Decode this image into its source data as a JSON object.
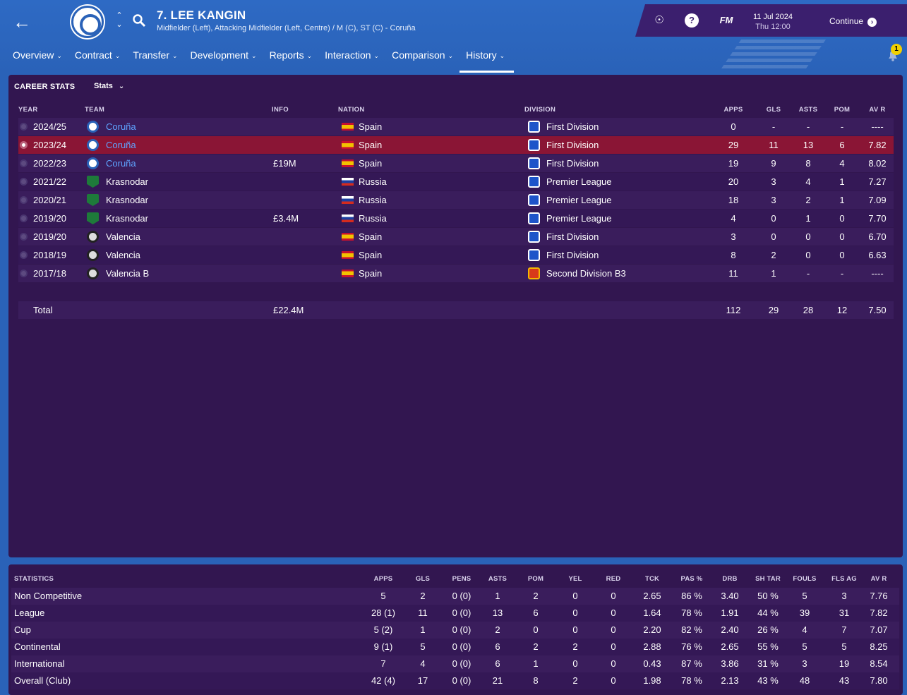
{
  "header": {
    "player_name": "7. LEE KANGIN",
    "positions": "Midfielder (Left), Attacking Midfielder (Left, Centre) / M (C), ST (C) - Coruña",
    "date": "11 Jul 2024",
    "time": "Thu 12:00",
    "brand": "FM",
    "help_glyph": "?",
    "continue_label": "Continue",
    "notification_count": "1"
  },
  "nav": {
    "items": [
      {
        "label": "Overview"
      },
      {
        "label": "Contract"
      },
      {
        "label": "Transfer"
      },
      {
        "label": "Development"
      },
      {
        "label": "Reports"
      },
      {
        "label": "Interaction"
      },
      {
        "label": "Comparison"
      },
      {
        "label": "History",
        "active": true
      }
    ]
  },
  "career": {
    "title": "CAREER STATS",
    "dropdown": "Stats",
    "columns": {
      "year": "YEAR",
      "team": "TEAM",
      "info": "INFO",
      "nation": "NATION",
      "division": "DIVISION",
      "apps": "APPS",
      "gls": "GLS",
      "asts": "ASTS",
      "pom": "POM",
      "avr": "AV R"
    },
    "rows": [
      {
        "year": "2024/25",
        "team": "Coruña",
        "logo": "coruna",
        "info": "",
        "nation": "Spain",
        "flag": "es",
        "division": "First Division",
        "divlogo": "blue",
        "apps": "0",
        "gls": "-",
        "asts": "-",
        "pom": "-",
        "avr": "----",
        "link": true
      },
      {
        "year": "2023/24",
        "team": "Coruña",
        "logo": "coruna",
        "info": "",
        "nation": "Spain",
        "flag": "es",
        "division": "First Division",
        "divlogo": "blue",
        "apps": "29",
        "gls": "11",
        "asts": "13",
        "pom": "6",
        "avr": "7.82",
        "link": true,
        "selected": true
      },
      {
        "year": "2022/23",
        "team": "Coruña",
        "logo": "coruna",
        "info": "£19M",
        "nation": "Spain",
        "flag": "es",
        "division": "First Division",
        "divlogo": "blue",
        "apps": "19",
        "gls": "9",
        "asts": "8",
        "pom": "4",
        "avr": "8.02",
        "link": true
      },
      {
        "year": "2021/22",
        "team": "Krasnodar",
        "logo": "krasnodar",
        "info": "",
        "nation": "Russia",
        "flag": "ru",
        "division": "Premier League",
        "divlogo": "blue",
        "apps": "20",
        "gls": "3",
        "asts": "4",
        "pom": "1",
        "avr": "7.27"
      },
      {
        "year": "2020/21",
        "team": "Krasnodar",
        "logo": "krasnodar",
        "info": "",
        "nation": "Russia",
        "flag": "ru",
        "division": "Premier League",
        "divlogo": "blue",
        "apps": "18",
        "gls": "3",
        "asts": "2",
        "pom": "1",
        "avr": "7.09"
      },
      {
        "year": "2019/20",
        "team": "Krasnodar",
        "logo": "krasnodar",
        "info": "£3.4M",
        "nation": "Russia",
        "flag": "ru",
        "division": "Premier League",
        "divlogo": "blue",
        "apps": "4",
        "gls": "0",
        "asts": "1",
        "pom": "0",
        "avr": "7.70"
      },
      {
        "year": "2019/20",
        "team": "Valencia",
        "logo": "valencia",
        "info": "",
        "nation": "Spain",
        "flag": "es",
        "division": "First Division",
        "divlogo": "blue",
        "apps": "3",
        "gls": "0",
        "asts": "0",
        "pom": "0",
        "avr": "6.70"
      },
      {
        "year": "2018/19",
        "team": "Valencia",
        "logo": "valencia",
        "info": "",
        "nation": "Spain",
        "flag": "es",
        "division": "First Division",
        "divlogo": "blue",
        "apps": "8",
        "gls": "2",
        "asts": "0",
        "pom": "0",
        "avr": "6.63"
      },
      {
        "year": "2017/18",
        "team": "Valencia B",
        "logo": "valencia",
        "info": "",
        "nation": "Spain",
        "flag": "es",
        "division": "Second Division B3",
        "divlogo": "red",
        "apps": "11",
        "gls": "1",
        "asts": "-",
        "pom": "-",
        "avr": "----"
      }
    ],
    "total": {
      "label": "Total",
      "info": "£22.4M",
      "apps": "112",
      "gls": "29",
      "asts": "28",
      "pom": "12",
      "avr": "7.50"
    }
  },
  "statistics": {
    "columns": [
      "STATISTICS",
      "APPS",
      "GLS",
      "PENS",
      "ASTS",
      "POM",
      "YEL",
      "RED",
      "TCK",
      "PAS %",
      "DRB",
      "SH TAR",
      "FOULS",
      "FLS AG",
      "AV R"
    ],
    "rows": [
      [
        "Non Competitive",
        "5",
        "2",
        "0 (0)",
        "1",
        "2",
        "0",
        "0",
        "2.65",
        "86 %",
        "3.40",
        "50 %",
        "5",
        "3",
        "7.76"
      ],
      [
        "League",
        "28 (1)",
        "11",
        "0 (0)",
        "13",
        "6",
        "0",
        "0",
        "1.64",
        "78 %",
        "1.91",
        "44 %",
        "39",
        "31",
        "7.82"
      ],
      [
        "Cup",
        "5 (2)",
        "1",
        "0 (0)",
        "2",
        "0",
        "0",
        "0",
        "2.20",
        "82 %",
        "2.40",
        "26 %",
        "4",
        "7",
        "7.07"
      ],
      [
        "Continental",
        "9 (1)",
        "5",
        "0 (0)",
        "6",
        "2",
        "2",
        "0",
        "2.88",
        "76 %",
        "2.65",
        "55 %",
        "5",
        "5",
        "8.25"
      ],
      [
        "International",
        "7",
        "4",
        "0 (0)",
        "6",
        "1",
        "0",
        "0",
        "0.43",
        "87 %",
        "3.86",
        "31 %",
        "3",
        "19",
        "8.54"
      ],
      [
        "Overall (Club)",
        "42 (4)",
        "17",
        "0 (0)",
        "21",
        "8",
        "2",
        "0",
        "1.98",
        "78 %",
        "2.13",
        "43 %",
        "48",
        "43",
        "7.80"
      ]
    ]
  }
}
